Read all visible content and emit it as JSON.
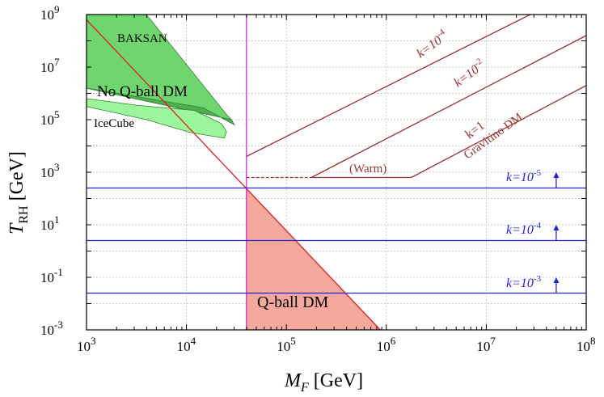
{
  "chart_data": {
    "type": "line",
    "xaxis": {
      "label_main": "M",
      "label_sub": "F",
      "label_unit": "[GeV]",
      "scale": "log",
      "range_exp": [
        3,
        8
      ],
      "tick_exponents": [
        "3",
        "4",
        "5",
        "6",
        "7",
        "8"
      ],
      "tick_base": "10"
    },
    "yaxis": {
      "label_main": "T",
      "label_sub": "RH",
      "label_unit": "[GeV]",
      "scale": "log",
      "range_exp": [
        -3,
        9
      ],
      "tick_exponents": [
        "-3",
        "-1",
        "1",
        "3",
        "5",
        "7",
        "9"
      ],
      "tick_base": "10"
    },
    "grid": true,
    "regions": [
      {
        "name": "BAKSAN",
        "label": "BAKSAN",
        "color": "#6fd56f",
        "points": [
          [
            3,
            9
          ],
          [
            3.6,
            9
          ],
          [
            4.4,
            5.2
          ],
          [
            4.45,
            5.0
          ],
          [
            3,
            6.2
          ]
        ]
      },
      {
        "name": "No Q-ball DM",
        "label": "No Q-ball DM",
        "color": "#4faf4f",
        "points": [
          [
            3,
            6.2
          ],
          [
            4.45,
            5.0
          ],
          [
            4.48,
            4.8
          ],
          [
            4.17,
            5.45
          ],
          [
            3,
            6.2
          ]
        ]
      },
      {
        "name": "IceCube",
        "label": "IceCube",
        "color": "#9cf79c",
        "points": [
          [
            3,
            5.8
          ],
          [
            3.5,
            5.55
          ],
          [
            4.08,
            5.35
          ],
          [
            4.35,
            4.85
          ],
          [
            4.4,
            4.55
          ],
          [
            4.38,
            4.3
          ],
          [
            4.05,
            4.5
          ],
          [
            3.6,
            5.0
          ],
          [
            3,
            5.5
          ]
        ]
      },
      {
        "name": "Q-ball DM",
        "label": "Q-ball DM",
        "color": "#f5a89c",
        "points": [
          [
            4.6,
            2.4
          ],
          [
            5.94,
            -3
          ],
          [
            4.6,
            -3
          ]
        ]
      }
    ],
    "lines": [
      {
        "name": "Q-ball boundary",
        "color": "#e01e1e",
        "points": [
          [
            3,
            8.8
          ],
          [
            5.94,
            -3
          ]
        ]
      },
      {
        "name": "vertical cutoff",
        "color": "#d030d0",
        "points": [
          [
            4.6,
            -3
          ],
          [
            4.6,
            9
          ]
        ]
      },
      {
        "name": "k=10^-4 gravitino",
        "color": "#993333",
        "points": [
          [
            4.6,
            3.6
          ],
          [
            7.44,
            9
          ]
        ]
      },
      {
        "name": "k=10^-2 gravitino",
        "color": "#993333",
        "points": [
          [
            5.25,
            2.8
          ],
          [
            8,
            8.2
          ]
        ]
      },
      {
        "name": "k=1 gravitino",
        "color": "#993333",
        "points": [
          [
            6.25,
            2.8
          ],
          [
            8,
            6.3
          ]
        ]
      },
      {
        "name": "warm floor",
        "color": "#993333",
        "points": [
          [
            5.25,
            2.8
          ],
          [
            6.25,
            2.8
          ]
        ]
      },
      {
        "name": "warm dashed",
        "color": "#993333",
        "dashed": true,
        "points": [
          [
            4.6,
            2.8
          ],
          [
            5.25,
            2.8
          ]
        ]
      },
      {
        "name": "k=10^-5 horizontal",
        "color": "#2222dd",
        "points": [
          [
            3,
            2.4
          ],
          [
            8,
            2.4
          ]
        ]
      },
      {
        "name": "k=10^-4 horizontal",
        "color": "#2222dd",
        "points": [
          [
            3,
            0.4
          ],
          [
            8,
            0.4
          ]
        ]
      },
      {
        "name": "k=10^-3 horizontal",
        "color": "#2222dd",
        "points": [
          [
            3,
            -1.6
          ],
          [
            8,
            -1.6
          ]
        ]
      }
    ],
    "annotations": {
      "q_ball_dm": "Q-ball DM",
      "warm": "(Warm)",
      "gravitino": "Gravitino DM",
      "k_base": "k=10",
      "k_one": "k=1",
      "k_exp_m4": "-4",
      "k_exp_m2": "-2",
      "k_exp_m5": "-5",
      "k_exp_m3": "-3"
    },
    "arrows": [
      {
        "name": "k=10^-5 arrow",
        "x": 7.7,
        "from": 2.4,
        "to": 3.0
      },
      {
        "name": "k=10^-4 arrow",
        "x": 7.7,
        "from": 0.4,
        "to": 1.0
      },
      {
        "name": "k=10^-3 arrow",
        "x": 7.7,
        "from": -1.6,
        "to": -1.0
      }
    ],
    "colors": {
      "blue_label": "#2222dd",
      "brown_label": "#993333"
    }
  }
}
